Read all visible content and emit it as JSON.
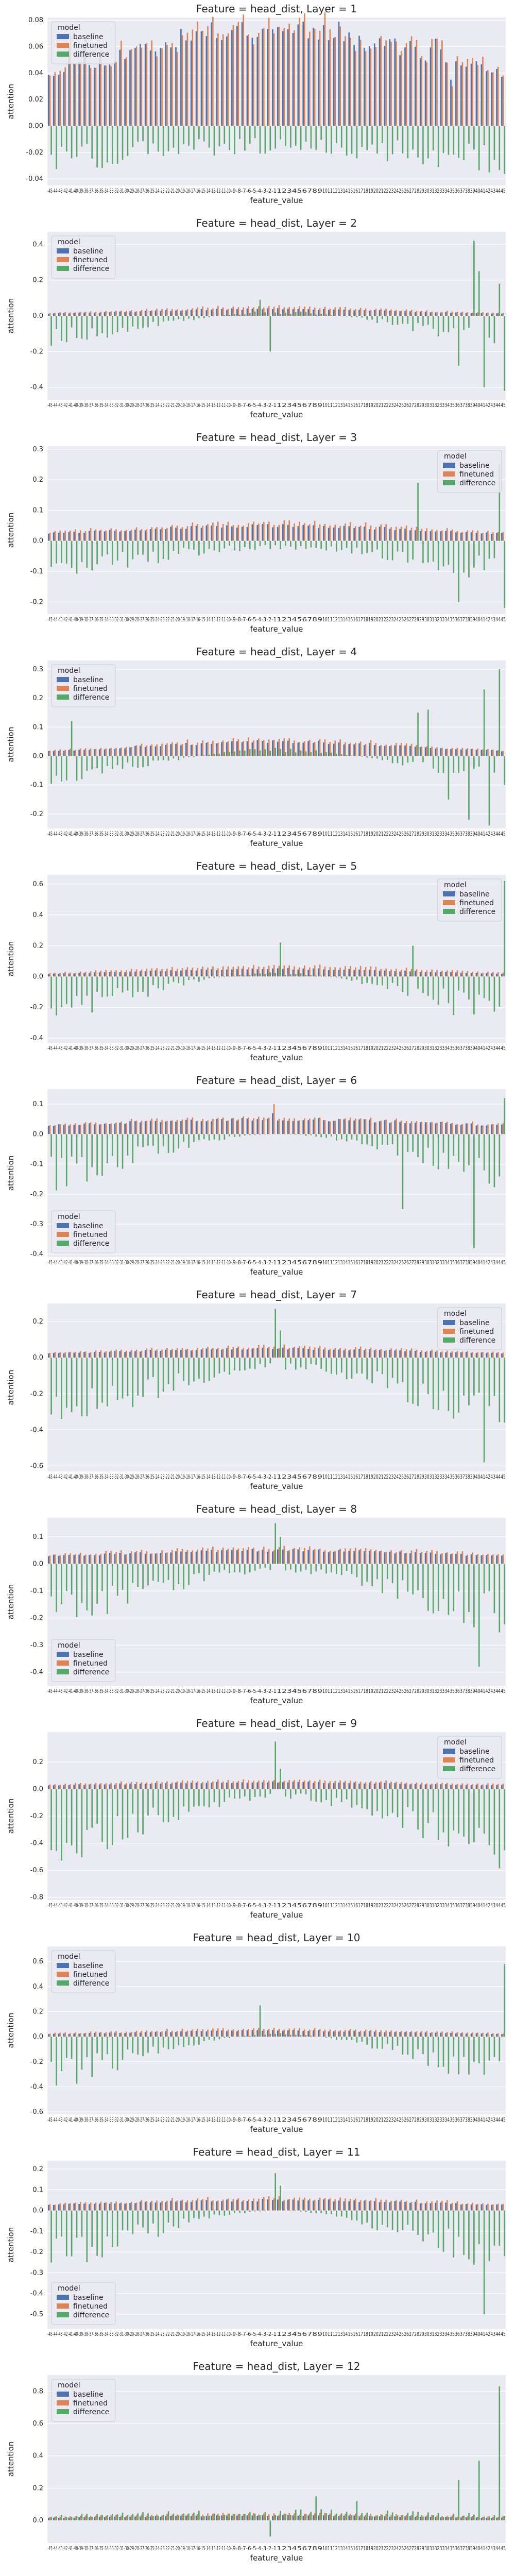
{
  "colors": {
    "baseline": "#4c72b0",
    "finetuned": "#dd8452",
    "difference": "#55a868",
    "panel_bg": "#eaeaf2",
    "grid": "#ffffff"
  },
  "chart_data": [
    {
      "type": "bar",
      "title": "Feature = head_dist, Layer = 1",
      "xlabel": "feature_value",
      "ylabel": "attention",
      "ylim": [
        -0.045,
        0.082
      ],
      "yticks": [
        -0.04,
        -0.02,
        0.0,
        0.02,
        0.04,
        0.06,
        0.08
      ],
      "legend": {
        "title": "model",
        "position": "upper-left",
        "entries": [
          "baseline",
          "finetuned",
          "difference"
        ]
      },
      "grid": true,
      "profile": {
        "base_edge": 0.025,
        "base_center": 0.075,
        "width": 30,
        "ft_gain": 1.03,
        "diff_center": -0.015,
        "diff_edge": -0.03
      },
      "spikes": [
        {
          "x": 4,
          "base": 0.06,
          "ft": 0.07
        },
        {
          "x": 7,
          "base": 0.06,
          "ft": 0.065
        },
        {
          "x": 76,
          "base": 0.066,
          "ft": 0.066
        },
        {
          "x": 79,
          "base": 0.035,
          "ft": 0.03
        }
      ],
      "seed": 11
    },
    {
      "type": "bar",
      "title": "Feature = head_dist, Layer = 2",
      "xlabel": "feature_value",
      "ylabel": "attention",
      "ylim": [
        -0.47,
        0.47
      ],
      "yticks": [
        -0.4,
        -0.2,
        0.0,
        0.2,
        0.4
      ],
      "legend": {
        "title": "model",
        "position": "upper-left",
        "entries": [
          "baseline",
          "finetuned",
          "difference"
        ]
      },
      "grid": true,
      "profile": {
        "base_edge": 0.006,
        "base_center": 0.04,
        "width": 25,
        "ft_gain": 1.3,
        "diff_center": 0.02,
        "diff_edge": -0.16
      },
      "spikes": [
        {
          "x": 41,
          "diff": 0.09
        },
        {
          "x": 43,
          "diff": -0.2
        },
        {
          "x": 80,
          "diff": -0.28
        },
        {
          "x": 83,
          "diff": 0.42
        },
        {
          "x": 84,
          "diff": 0.25
        },
        {
          "x": 85,
          "diff": -0.4
        },
        {
          "x": 88,
          "diff": 0.18
        },
        {
          "x": 89,
          "diff": -0.42
        }
      ],
      "seed": 22
    },
    {
      "type": "bar",
      "title": "Feature = head_dist, Layer = 3",
      "xlabel": "feature_value",
      "ylabel": "attention",
      "ylim": [
        -0.24,
        0.31
      ],
      "yticks": [
        -0.2,
        -0.1,
        0.0,
        0.1,
        0.2,
        0.3
      ],
      "legend": {
        "title": "model",
        "position": "upper-right",
        "entries": [
          "baseline",
          "finetuned",
          "difference"
        ]
      },
      "grid": true,
      "profile": {
        "base_edge": 0.015,
        "base_center": 0.05,
        "width": 28,
        "ft_gain": 1.2,
        "diff_center": -0.02,
        "diff_edge": -0.12
      },
      "spikes": [
        {
          "x": 72,
          "diff": 0.19
        },
        {
          "x": 80,
          "diff": -0.2
        },
        {
          "x": 82,
          "diff": -0.12
        },
        {
          "x": 88,
          "diff": 0.25
        },
        {
          "x": 89,
          "diff": -0.22
        }
      ],
      "seed": 33
    },
    {
      "type": "bar",
      "title": "Feature = head_dist, Layer = 4",
      "xlabel": "feature_value",
      "ylabel": "attention",
      "ylim": [
        -0.25,
        0.33
      ],
      "yticks": [
        -0.2,
        -0.1,
        0.0,
        0.1,
        0.2,
        0.3
      ],
      "legend": {
        "title": "model",
        "position": "upper-left",
        "entries": [
          "baseline",
          "finetuned",
          "difference"
        ]
      },
      "grid": true,
      "profile": {
        "base_edge": 0.01,
        "base_center": 0.05,
        "width": 25,
        "ft_gain": 1.15,
        "diff_center": 0.02,
        "diff_edge": -0.09
      },
      "spikes": [
        {
          "x": 4,
          "diff": 0.12
        },
        {
          "x": 72,
          "diff": 0.15
        },
        {
          "x": 74,
          "diff": 0.16
        },
        {
          "x": 78,
          "diff": -0.15
        },
        {
          "x": 82,
          "diff": -0.22
        },
        {
          "x": 85,
          "diff": 0.23
        },
        {
          "x": 86,
          "diff": -0.24
        },
        {
          "x": 88,
          "diff": 0.3
        },
        {
          "x": 89,
          "diff": -0.1
        }
      ],
      "seed": 44
    },
    {
      "type": "bar",
      "title": "Feature = head_dist, Layer = 5",
      "xlabel": "feature_value",
      "ylabel": "attention",
      "ylim": [
        -0.43,
        0.66
      ],
      "yticks": [
        -0.4,
        -0.2,
        0.0,
        0.2,
        0.4,
        0.6
      ],
      "legend": {
        "title": "model",
        "position": "upper-right",
        "entries": [
          "baseline",
          "finetuned",
          "difference"
        ]
      },
      "grid": true,
      "profile": {
        "base_edge": 0.005,
        "base_center": 0.05,
        "width": 28,
        "ft_gain": 1.4,
        "diff_center": 0.02,
        "diff_edge": -0.3
      },
      "spikes": [
        {
          "x": 45,
          "diff": 0.22
        },
        {
          "x": 71,
          "diff": 0.2
        },
        {
          "x": 79,
          "diff": -0.25
        },
        {
          "x": 89,
          "diff": 0.62
        }
      ],
      "seed": 55
    },
    {
      "type": "bar",
      "title": "Feature = head_dist, Layer = 6",
      "xlabel": "feature_value",
      "ylabel": "attention",
      "ylim": [
        -0.41,
        0.15
      ],
      "yticks": [
        -0.4,
        -0.3,
        -0.2,
        -0.1,
        0.0,
        0.1
      ],
      "legend": {
        "title": "model",
        "position": "lower-left",
        "entries": [
          "baseline",
          "finetuned",
          "difference"
        ]
      },
      "grid": true,
      "profile": {
        "base_edge": 0.02,
        "base_center": 0.05,
        "width": 30,
        "ft_gain": 1.1,
        "diff_center": 0.0,
        "diff_edge": -0.2
      },
      "spikes": [
        {
          "x": 44,
          "base": 0.07,
          "ft": 0.1
        },
        {
          "x": 69,
          "diff": -0.25
        },
        {
          "x": 83,
          "diff": -0.38
        },
        {
          "x": 89,
          "diff": 0.12
        }
      ],
      "seed": 66
    },
    {
      "type": "bar",
      "title": "Feature = head_dist, Layer = 7",
      "xlabel": "feature_value",
      "ylabel": "attention",
      "ylim": [
        -0.63,
        0.3
      ],
      "yticks": [
        -0.6,
        -0.4,
        -0.2,
        0.0,
        0.2
      ],
      "legend": {
        "title": "model",
        "position": "upper-right",
        "entries": [
          "baseline",
          "finetuned",
          "difference"
        ]
      },
      "grid": true,
      "profile": {
        "base_edge": 0.015,
        "base_center": 0.05,
        "width": 28,
        "ft_gain": 1.2,
        "diff_center": -0.05,
        "diff_edge": -0.4
      },
      "spikes": [
        {
          "x": 44,
          "diff": 0.27
        },
        {
          "x": 45,
          "diff": 0.15
        },
        {
          "x": 85,
          "diff": -0.58
        }
      ],
      "seed": 77
    },
    {
      "type": "bar",
      "title": "Feature = head_dist, Layer = 8",
      "xlabel": "feature_value",
      "ylabel": "attention",
      "ylim": [
        -0.45,
        0.17
      ],
      "yticks": [
        -0.4,
        -0.3,
        -0.2,
        -0.1,
        0.0,
        0.1
      ],
      "legend": {
        "title": "model",
        "position": "lower-left",
        "entries": [
          "baseline",
          "finetuned",
          "difference"
        ]
      },
      "grid": true,
      "profile": {
        "base_edge": 0.02,
        "base_center": 0.05,
        "width": 30,
        "ft_gain": 1.15,
        "diff_center": -0.02,
        "diff_edge": -0.28
      },
      "spikes": [
        {
          "x": 44,
          "diff": 0.15
        },
        {
          "x": 45,
          "diff": 0.1
        },
        {
          "x": 84,
          "diff": -0.38
        }
      ],
      "seed": 88
    },
    {
      "type": "bar",
      "title": "Feature = head_dist, Layer = 9",
      "xlabel": "feature_value",
      "ylabel": "attention",
      "ylim": [
        -0.82,
        0.42
      ],
      "yticks": [
        -0.8,
        -0.6,
        -0.4,
        -0.2,
        0.0,
        0.2
      ],
      "legend": {
        "title": "model",
        "position": "upper-right",
        "entries": [
          "baseline",
          "finetuned",
          "difference"
        ]
      },
      "grid": true,
      "profile": {
        "base_edge": 0.02,
        "base_center": 0.05,
        "width": 28,
        "ft_gain": 1.3,
        "diff_center": -0.05,
        "diff_edge": -0.55
      },
      "spikes": [
        {
          "x": 44,
          "diff": 0.35
        },
        {
          "x": 45,
          "diff": 0.15
        }
      ],
      "seed": 99
    },
    {
      "type": "bar",
      "title": "Feature = head_dist, Layer = 10",
      "xlabel": "feature_value",
      "ylabel": "attention",
      "ylim": [
        -0.62,
        0.72
      ],
      "yticks": [
        -0.6,
        -0.4,
        -0.2,
        0.0,
        0.2,
        0.4,
        0.6
      ],
      "legend": {
        "title": "model",
        "position": "upper-left",
        "entries": [
          "baseline",
          "finetuned",
          "difference"
        ]
      },
      "grid": true,
      "profile": {
        "base_edge": 0.01,
        "base_center": 0.05,
        "width": 28,
        "ft_gain": 1.3,
        "diff_center": 0.02,
        "diff_edge": -0.42
      },
      "spikes": [
        {
          "x": 41,
          "diff": 0.25
        },
        {
          "x": 89,
          "diff": 0.58
        }
      ],
      "seed": 110
    },
    {
      "type": "bar",
      "title": "Feature = head_dist, Layer = 11",
      "xlabel": "feature_value",
      "ylabel": "attention",
      "ylim": [
        -0.57,
        0.24
      ],
      "yticks": [
        -0.5,
        -0.4,
        -0.3,
        -0.2,
        -0.1,
        0.0,
        0.1,
        0.2
      ],
      "legend": {
        "title": "model",
        "position": "lower-left",
        "entries": [
          "baseline",
          "finetuned",
          "difference"
        ]
      },
      "grid": true,
      "profile": {
        "base_edge": 0.02,
        "base_center": 0.05,
        "width": 28,
        "ft_gain": 1.2,
        "diff_center": 0.0,
        "diff_edge": -0.3
      },
      "spikes": [
        {
          "x": 44,
          "diff": 0.18
        },
        {
          "x": 45,
          "diff": 0.12
        },
        {
          "x": 85,
          "diff": -0.5
        }
      ],
      "seed": 121
    },
    {
      "type": "bar",
      "title": "Feature = head_dist, Layer = 12",
      "xlabel": "feature_value",
      "ylabel": "attention",
      "ylim": [
        -0.14,
        0.9
      ],
      "yticks": [
        0.0,
        0.2,
        0.4,
        0.6,
        0.8
      ],
      "legend": {
        "title": "model",
        "position": "upper-left",
        "entries": [
          "baseline",
          "finetuned",
          "difference"
        ]
      },
      "grid": true,
      "profile": {
        "base_edge": 0.01,
        "base_center": 0.03,
        "width": 30,
        "ft_gain": 1.4,
        "diff_center": 0.05,
        "diff_edge": 0.02
      },
      "spikes": [
        {
          "x": 43,
          "diff": -0.1
        },
        {
          "x": 52,
          "diff": 0.15
        },
        {
          "x": 60,
          "diff": 0.12
        },
        {
          "x": 80,
          "diff": 0.25
        },
        {
          "x": 84,
          "diff": 0.37
        },
        {
          "x": 88,
          "diff": 0.83
        }
      ],
      "seed": 132
    }
  ],
  "x_categories": {
    "from": -45,
    "to": 45,
    "exclude_zero": true
  }
}
